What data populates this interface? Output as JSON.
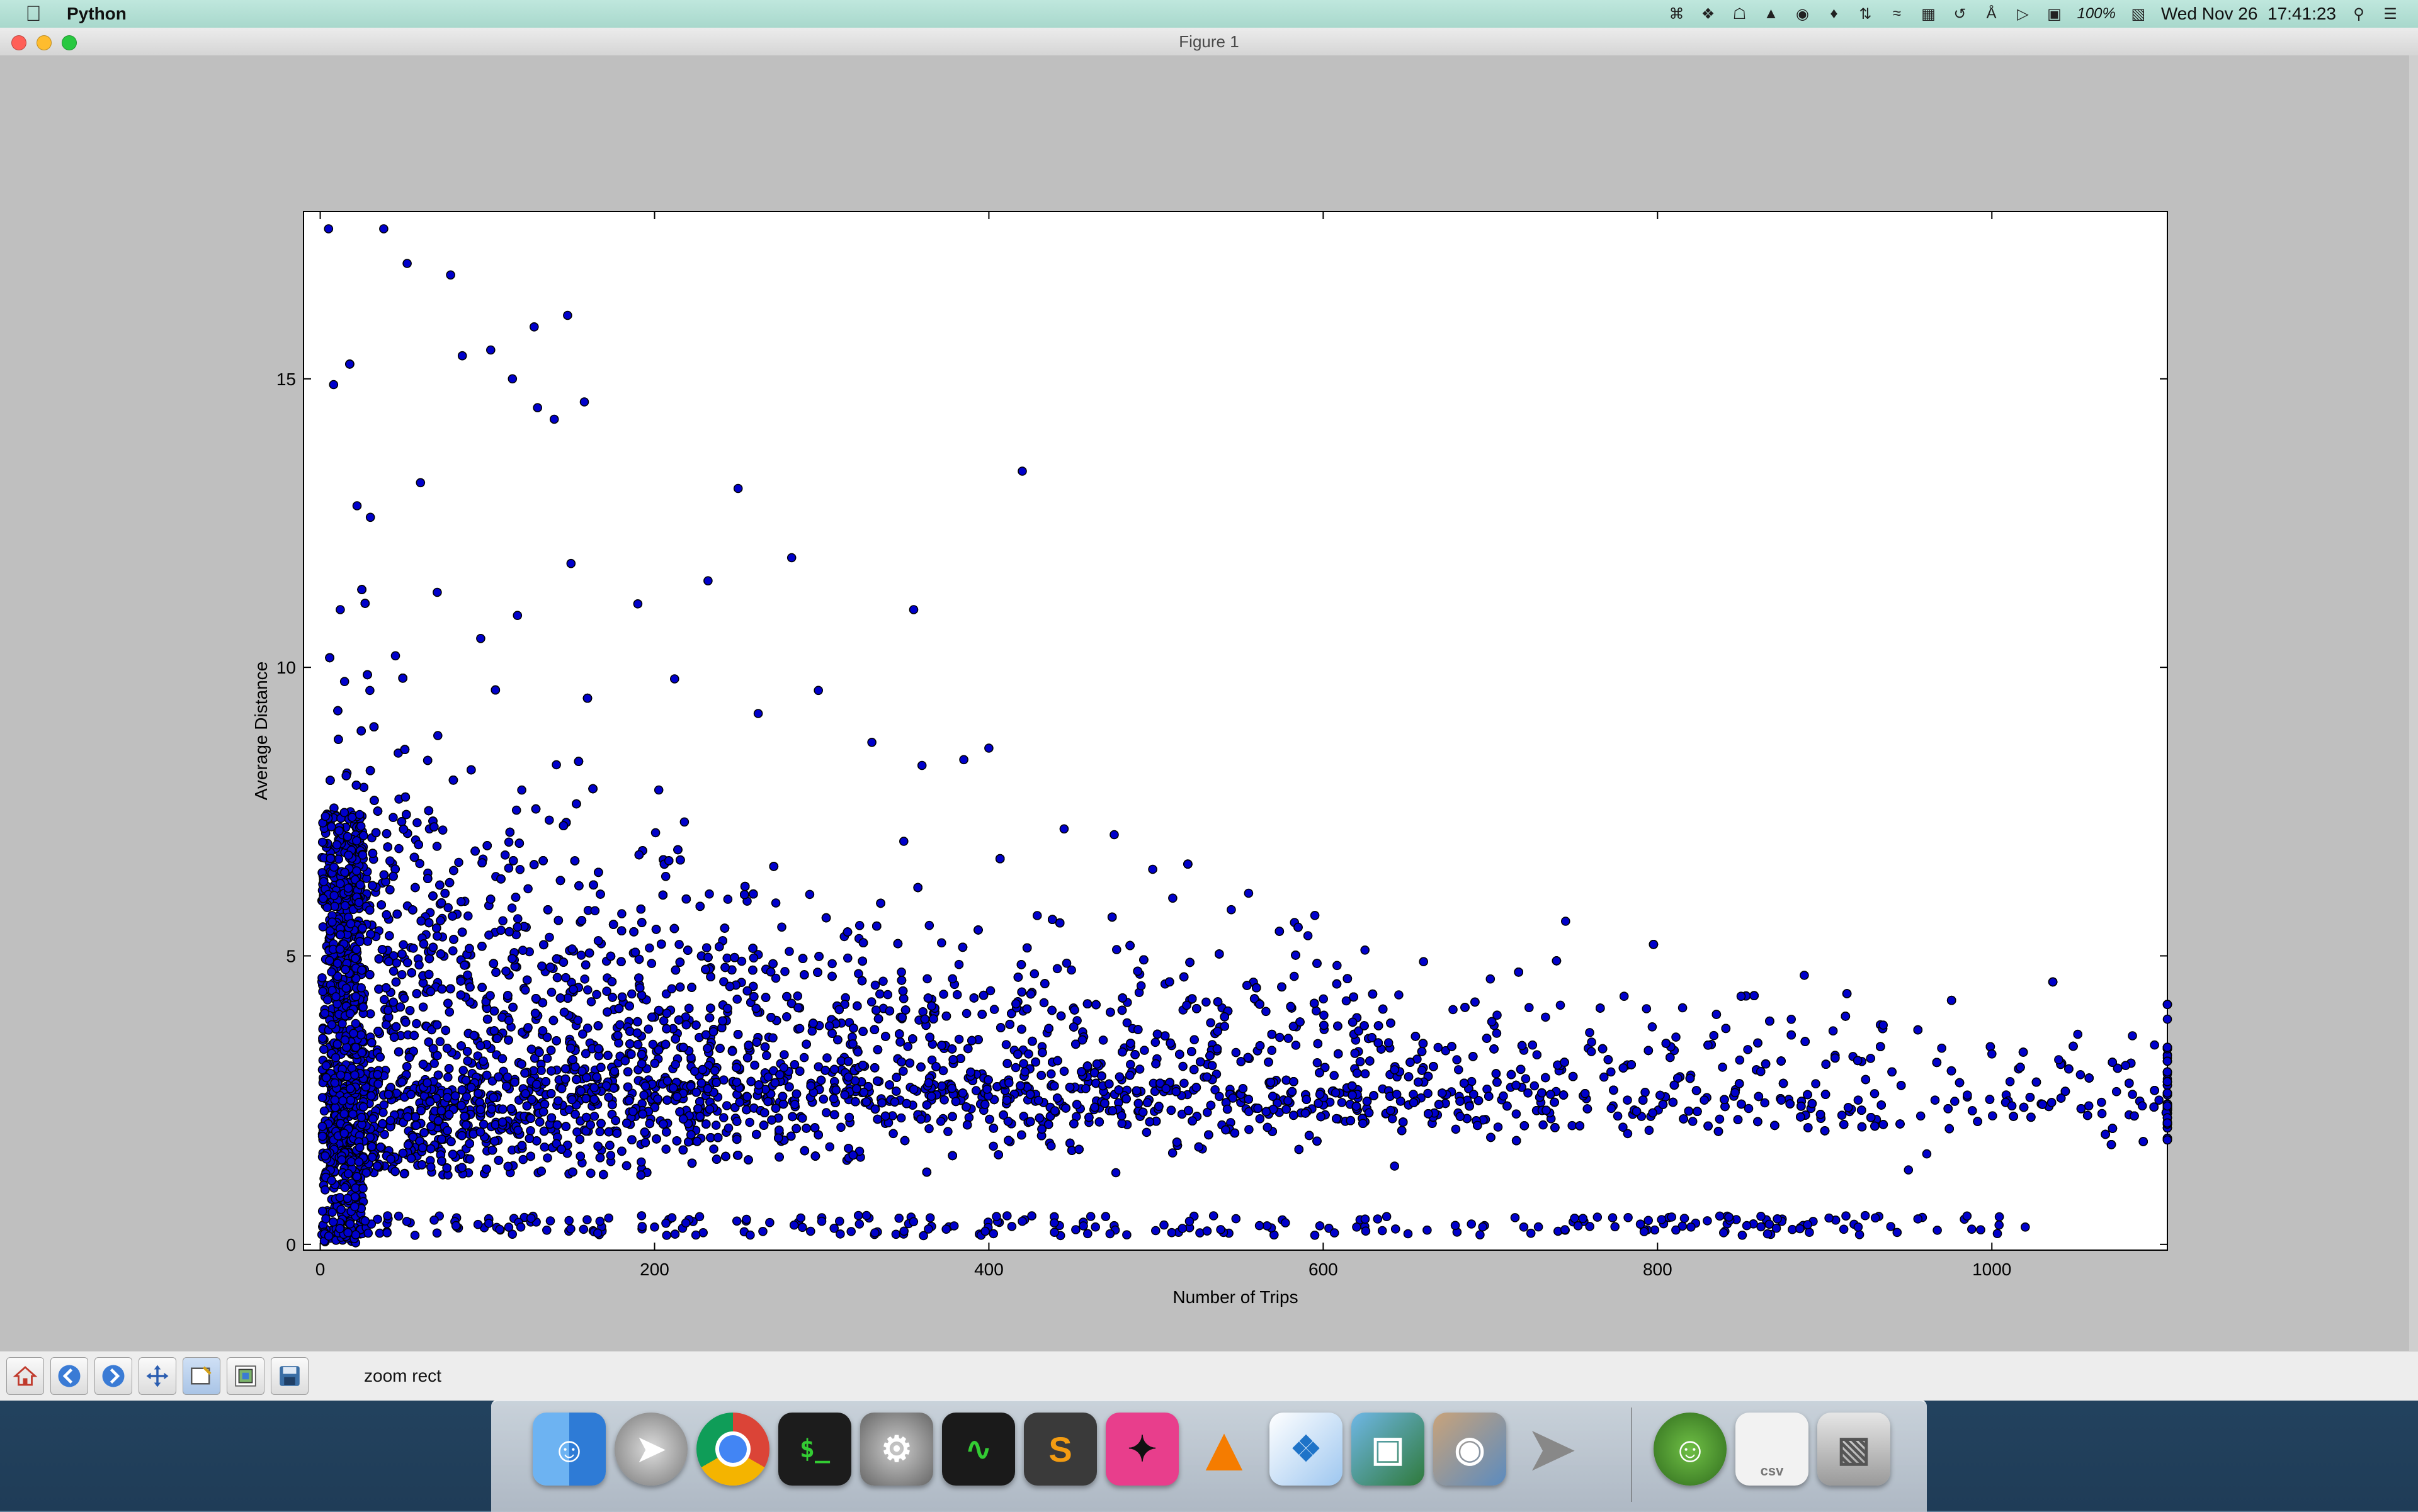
{
  "menubar": {
    "app_name": "Python",
    "battery": "100%",
    "clock": "Wed Nov 26  17:41:23",
    "status_icons": [
      "command-icon",
      "dropbox-icon",
      "notification-icon",
      "google-drive-icon",
      "headphones-icon",
      "evernote-icon",
      "network-arrows-icon",
      "wifi-icon",
      "battery-meter-icon",
      "time-machine-icon",
      "bluetooth-icon",
      "volume-icon",
      "input-icon",
      "battery-icon",
      "spotlight-icon",
      "notification-center-icon"
    ]
  },
  "window": {
    "title": "Figure 1"
  },
  "toolbar": {
    "buttons": [
      "home",
      "back",
      "forward",
      "pan",
      "zoom",
      "configure-subplots",
      "save"
    ],
    "status": "zoom rect"
  },
  "chart_data": {
    "type": "scatter",
    "xlabel": "Number of Trips",
    "ylabel": "Average Distance",
    "xlim": [
      -10,
      1105
    ],
    "ylim": [
      -0.1,
      17.9
    ],
    "xticks": [
      "0",
      "200",
      "400",
      "600",
      "800",
      "1000"
    ],
    "yticks": [
      "0",
      "5",
      "10",
      "15"
    ],
    "marker_color": "#0000cc",
    "marker_edge": "#000000",
    "grid": false,
    "legend": false,
    "x": [
      5,
      38,
      52,
      78,
      128,
      148,
      8,
      22,
      30,
      60,
      85,
      102,
      115,
      130,
      140,
      158,
      12,
      45,
      70,
      96,
      118,
      150,
      190,
      232,
      250,
      282,
      355,
      420,
      385,
      212,
      262,
      298,
      330,
      360,
      400,
      445,
      475,
      498,
      510,
      545,
      595,
      625,
      660,
      700,
      745,
      780,
      815,
      850,
      880,
      905,
      935,
      970,
      1000,
      1040,
      1080,
      1100,
      18,
      64,
      112,
      176,
      224,
      268,
      316,
      364,
      412,
      458,
      506,
      552,
      598,
      644,
      690,
      736,
      782,
      828,
      874,
      920,
      966,
      1012,
      1058,
      1090,
      40,
      120,
      200,
      300,
      420,
      520,
      620,
      720,
      820,
      920,
      1020
    ],
    "y": [
      17.6,
      17.6,
      17.0,
      16.8,
      15.9,
      16.1,
      14.9,
      12.8,
      12.6,
      13.2,
      15.4,
      15.5,
      15.0,
      14.5,
      14.3,
      14.6,
      11.0,
      10.2,
      11.3,
      10.5,
      10.9,
      11.8,
      11.1,
      11.5,
      13.1,
      11.9,
      11.0,
      13.4,
      8.4,
      9.8,
      9.2,
      9.6,
      8.7,
      8.3,
      8.6,
      7.2,
      7.1,
      6.5,
      6.0,
      5.8,
      5.7,
      5.1,
      4.9,
      4.6,
      5.6,
      4.3,
      4.1,
      4.3,
      3.9,
      3.7,
      3.8,
      3.4,
      3.3,
      3.2,
      3.1,
      2.5,
      2.7,
      2.8,
      2.9,
      3.0,
      3.0,
      2.9,
      2.9,
      2.8,
      2.8,
      2.7,
      2.7,
      2.7,
      2.6,
      2.6,
      2.6,
      2.6,
      2.5,
      2.5,
      2.5,
      2.5,
      2.5,
      2.4,
      2.4,
      2.4,
      0.2,
      0.3,
      0.3,
      0.4,
      0.4,
      0.4,
      0.3,
      0.3,
      0.3,
      0.3,
      0.3
    ]
  }
}
